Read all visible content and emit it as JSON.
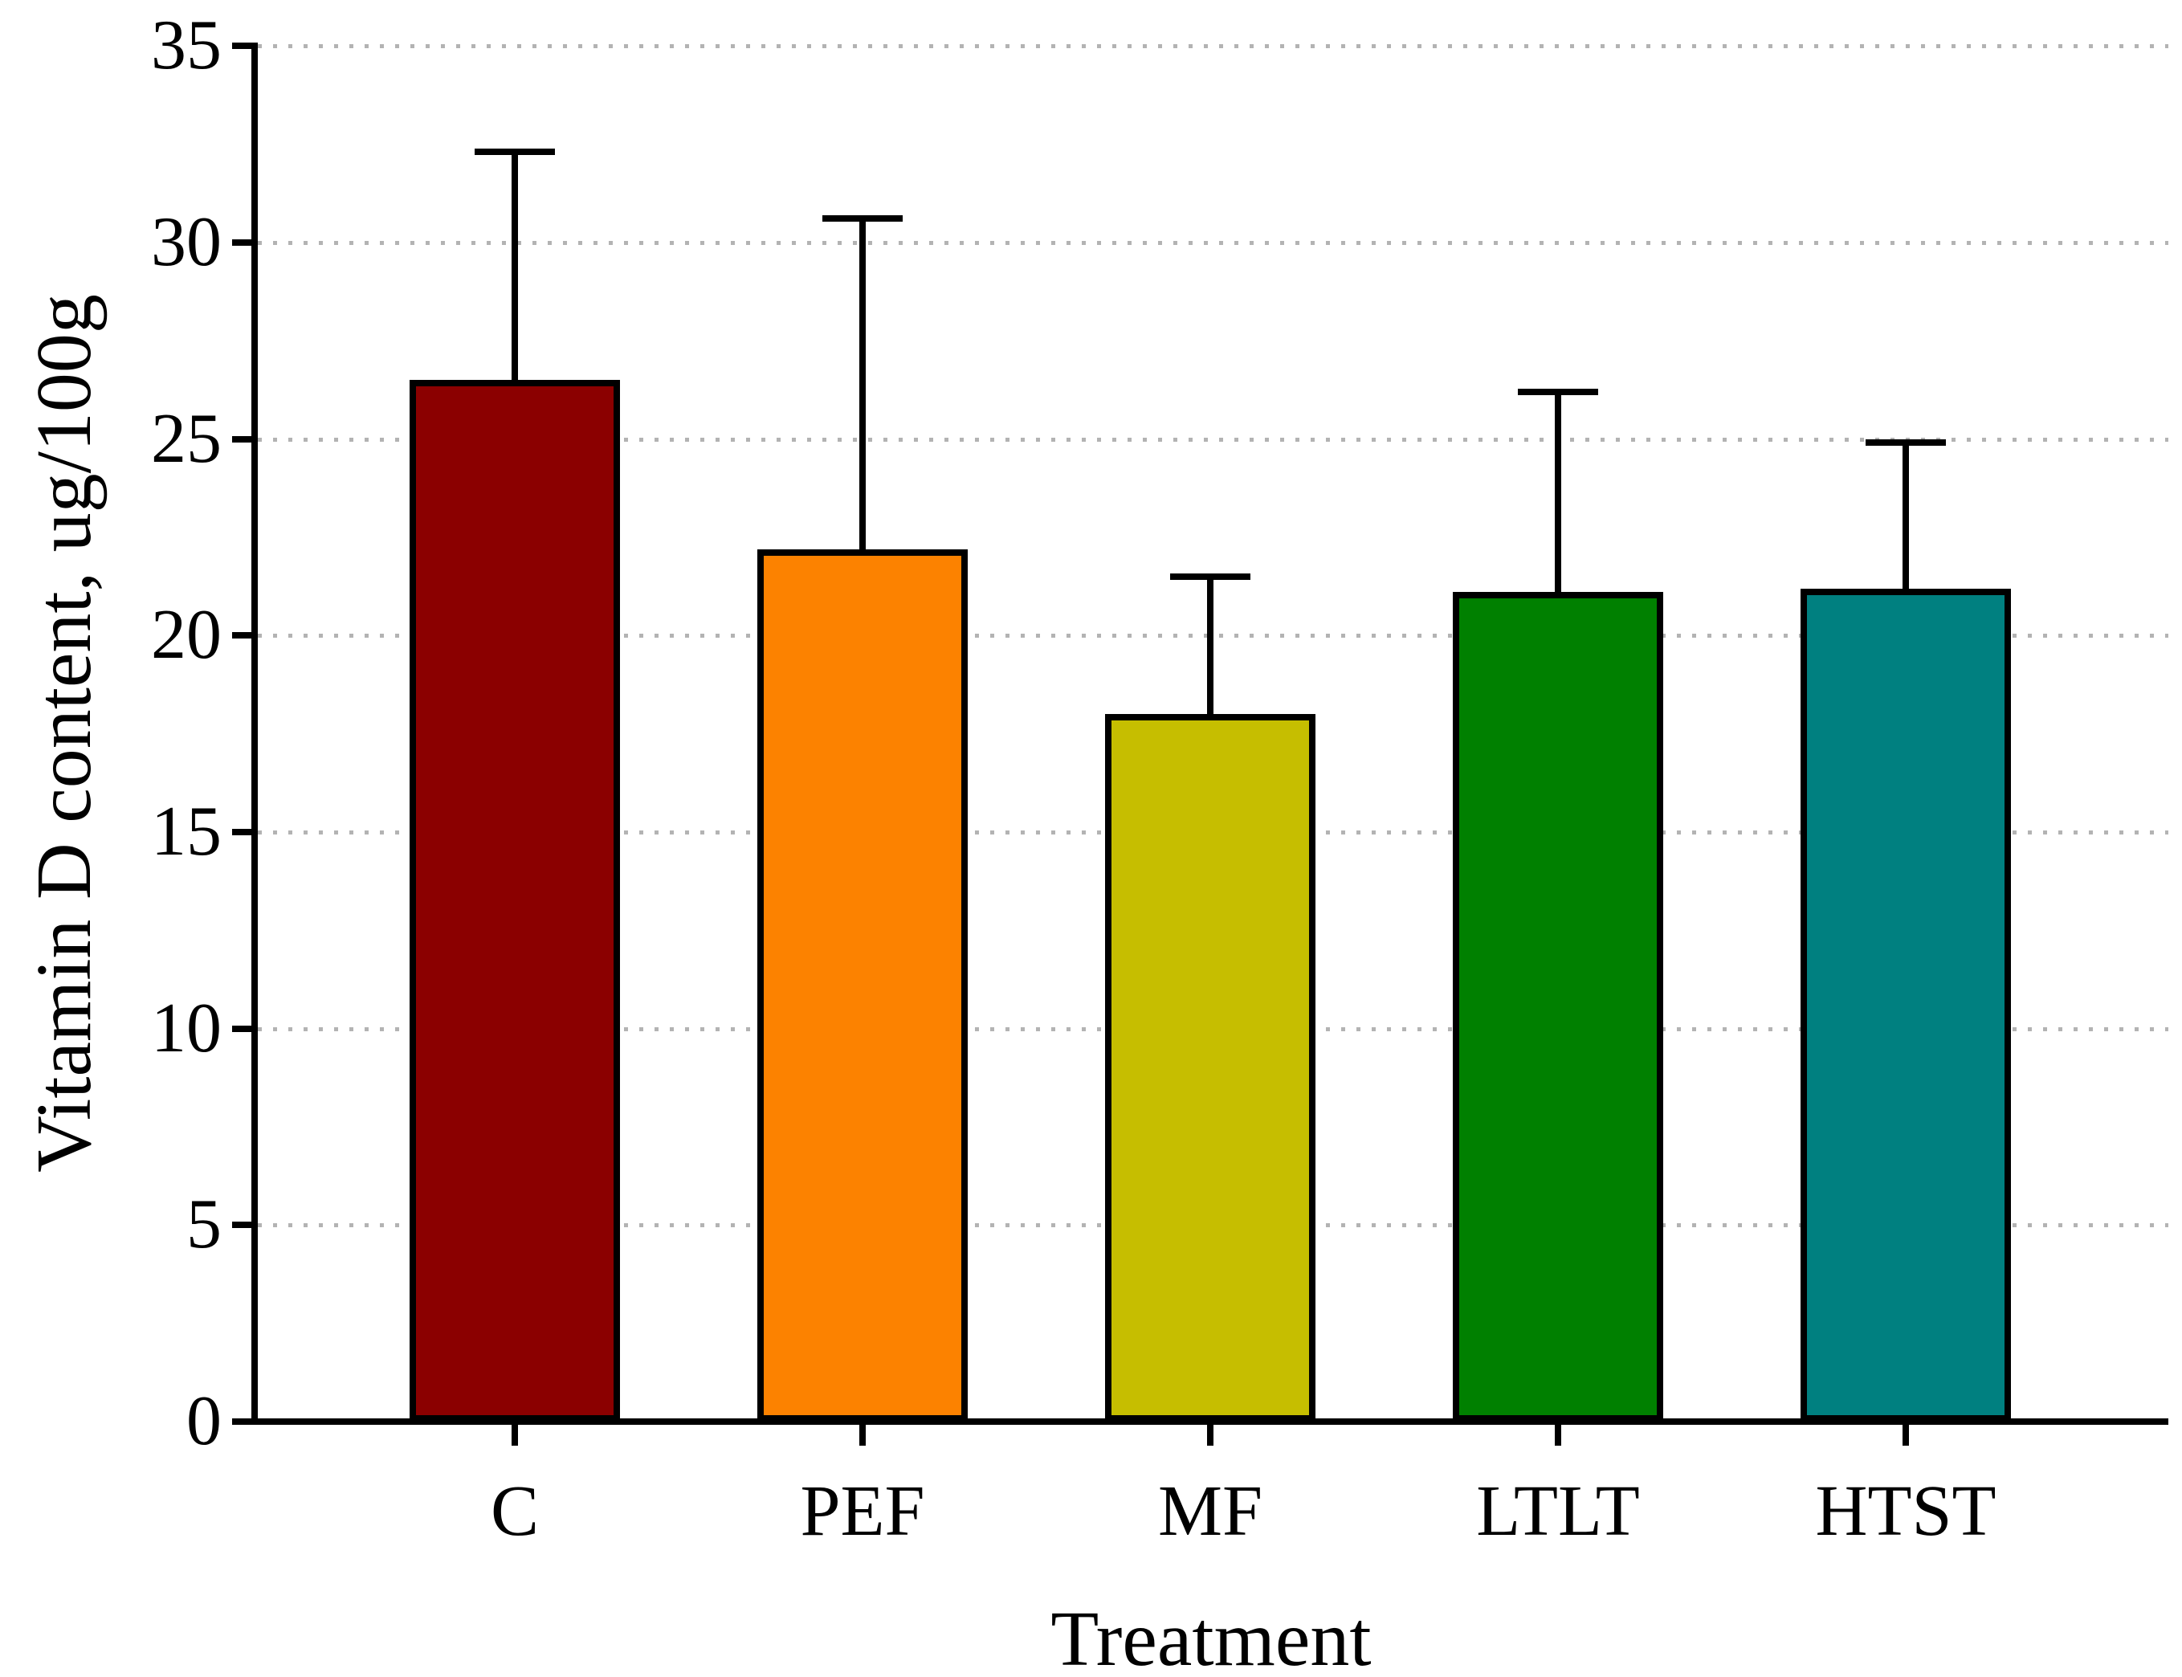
{
  "figure": {
    "background": "#ffffff",
    "y_axis_title": "Vitamin D content, ug/100g",
    "x_axis_title": "Treatment"
  },
  "chart_data": {
    "type": "bar",
    "title": "",
    "xlabel": "Treatment",
    "ylabel": "Vitamin D content, ug/100g",
    "categories": [
      "C",
      "PEF",
      "MF",
      "LTLT",
      "HTST"
    ],
    "values": [
      26.5,
      22.2,
      18.0,
      21.1,
      21.2
    ],
    "errors_upper": [
      5.8,
      8.4,
      3.5,
      5.1,
      3.7
    ],
    "error_bar_tops": [
      32.3,
      30.6,
      21.5,
      26.2,
      24.9
    ],
    "bar_colors": [
      "#8B0000",
      "#FC8200",
      "#C6BE00",
      "#008000",
      "#008080"
    ],
    "bar_border_color": "#000000",
    "error_bar_color": "#000000",
    "ylim": [
      0,
      35
    ],
    "ytick_step": 5,
    "ytick_labels": [
      "0",
      "5",
      "10",
      "15",
      "20",
      "25",
      "30",
      "35"
    ],
    "grid": "horizontal dotted gridlines at every y tick",
    "gridline_color": "#b3b3b3",
    "legend": "none"
  }
}
